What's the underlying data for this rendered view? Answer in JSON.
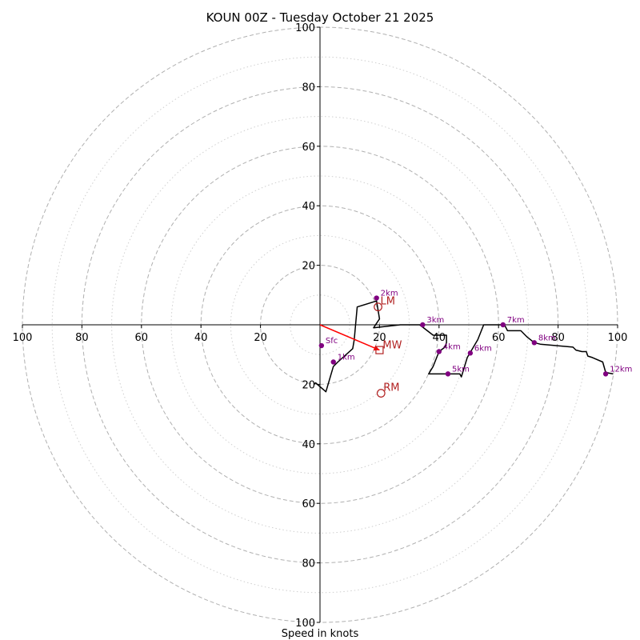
{
  "chart_data": {
    "type": "hodograph",
    "title": "KOUN 00Z - Tuesday October 21 2025",
    "xlabel": "Speed in knots",
    "units": "knots",
    "range": [
      -100,
      100
    ],
    "major_rings": [
      20,
      40,
      60,
      80,
      100
    ],
    "minor_rings": [
      10,
      30,
      50,
      70,
      90
    ],
    "x_tick_values": [
      -100,
      -80,
      -60,
      -40,
      -20,
      20,
      40,
      60,
      80,
      100
    ],
    "x_tick_labels": [
      "100",
      "80",
      "60",
      "40",
      "20",
      "20",
      "40",
      "60",
      "80",
      "100"
    ],
    "y_tick_values": [
      100,
      80,
      60,
      40,
      20,
      -20,
      -40,
      -60,
      -80,
      -100
    ],
    "y_tick_labels": [
      "100",
      "80",
      "60",
      "40",
      "20",
      "20",
      "40",
      "60",
      "80",
      "100"
    ],
    "hodograph_trace": {
      "u": [
        -2,
        -1.5,
        2,
        4.5,
        6,
        11,
        11.5,
        12.5,
        19,
        20,
        18,
        18,
        27,
        33.5,
        38,
        42.5,
        42.5,
        42,
        40,
        38,
        36.5,
        43,
        47,
        47.5,
        49.5,
        53,
        55,
        56.5,
        62,
        63,
        67,
        67.5,
        69.5,
        72,
        74,
        85,
        86,
        88,
        89.5,
        90,
        91.5,
        95,
        96,
        98.5
      ],
      "v": [
        -20,
        -19.5,
        -22.5,
        -14,
        -12.5,
        -8,
        -5,
        6,
        8,
        2,
        -1,
        -1,
        0,
        0,
        -3.5,
        -3.5,
        -6,
        -7.5,
        -9,
        -14,
        -16.5,
        -16.5,
        -16.5,
        -17.5,
        -11,
        -5,
        0,
        0,
        0,
        -2,
        -2,
        -2,
        -4,
        -6,
        -6.5,
        -7.5,
        -8.5,
        -9,
        -9,
        -10.5,
        -11,
        -12.5,
        -16,
        -16.5
      ]
    },
    "height_markers": [
      {
        "label": "Sfc",
        "u": 0.5,
        "v": -7
      },
      {
        "label": "1km",
        "u": 4.5,
        "v": -12.5
      },
      {
        "label": "2km",
        "u": 19,
        "v": 9
      },
      {
        "label": "3km",
        "u": 34.5,
        "v": 0
      },
      {
        "label": "4km",
        "u": 40,
        "v": -9
      },
      {
        "label": "5km",
        "u": 43,
        "v": -16.5
      },
      {
        "label": "6km",
        "u": 50.5,
        "v": -9.5
      },
      {
        "label": "7km",
        "u": 61.5,
        "v": 0
      },
      {
        "label": "8km",
        "u": 72,
        "v": -6
      },
      {
        "label": "12km",
        "u": 96,
        "v": -16.5
      }
    ],
    "storm_motion": {
      "mean_wind": {
        "label": "MW",
        "u": 20,
        "v": -8.5
      },
      "left_mover": {
        "label": "LM",
        "u": 19.5,
        "v": 6
      },
      "right_mover": {
        "label": "RM",
        "u": 20.5,
        "v": -23
      }
    },
    "shear_vector": {
      "from_u": 0,
      "from_v": 0,
      "to_u": 20,
      "to_v": -8.5
    },
    "colors": {
      "trace": "#000000",
      "height_marker": "#800080",
      "storm_motion": "#b22222",
      "shear_arrow": "#ff0000",
      "major_ring": "#b0b0b0",
      "minor_ring": "#cfcfcf",
      "axis": "#000000"
    }
  }
}
